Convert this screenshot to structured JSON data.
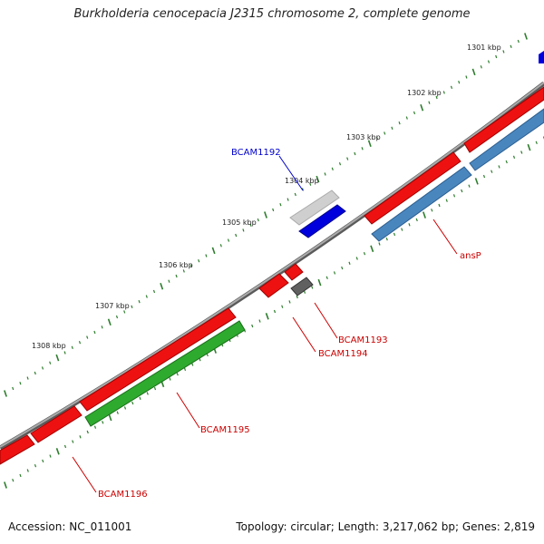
{
  "title": "Burkholderia cenocepacia J2315 chromosome 2, complete genome",
  "accession_label": "Accession: NC_011001",
  "summary_label": "Topology: circular; Length: 3,217,062 bp; Genes: 2,819",
  "colors": {
    "backbone": "#888888",
    "tick": "#2e7d2e",
    "red": "#ee1111",
    "blue": "#0000dd",
    "steelblue": "#4a86be",
    "green": "#2eaa2e",
    "gray_light": "#c8c8c8",
    "gray_dark": "#606060",
    "label_red": "#cc0000",
    "label_blue": "#0000cc"
  },
  "kbp_labels": [
    "1301 kbp",
    "1302 kbp",
    "1303 kbp",
    "1304 kbp",
    "1305 kbp",
    "1306 kbp",
    "1307 kbp",
    "1308 kbp"
  ],
  "gene_labels": {
    "bcam1192": "BCAM1192",
    "ansp": "ansP",
    "bcam1193": "BCAM1193",
    "bcam1194": "BCAM1194",
    "bcam1195": "BCAM1195",
    "bcam1196": "BCAM1196"
  }
}
